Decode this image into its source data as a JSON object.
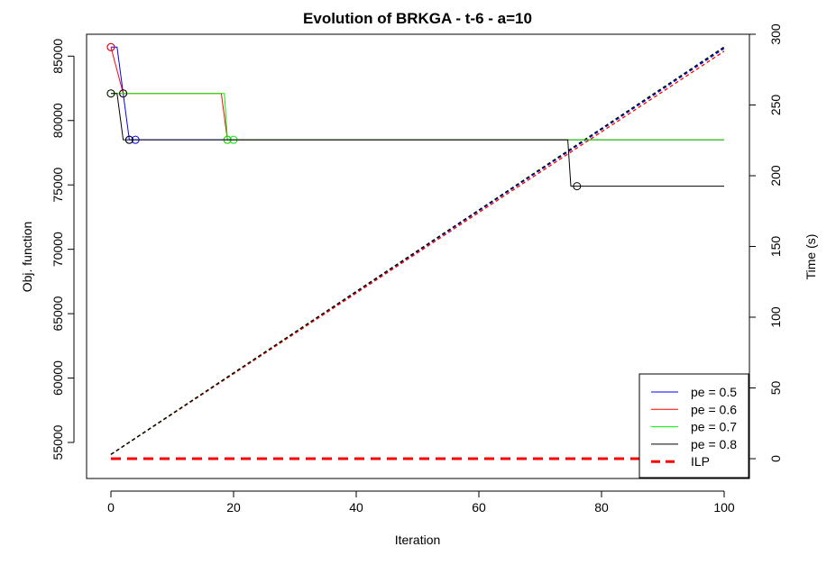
{
  "chart_data": {
    "type": "line",
    "title": "Evolution of BRKGA - t-6 - a=10",
    "xlabel": "Iteration",
    "ylabel": "Obj. function",
    "y2label": "Time (s)",
    "xlim": [
      0,
      100
    ],
    "ylim": [
      52200,
      86700
    ],
    "y2lim": [
      -14,
      300
    ],
    "x_ticks": [
      0,
      20,
      40,
      60,
      80,
      100
    ],
    "y_ticks": [
      55000,
      60000,
      65000,
      70000,
      75000,
      80000,
      85000
    ],
    "y2_ticks": [
      0,
      50,
      100,
      150,
      200,
      250,
      300
    ],
    "grid": false,
    "legend_position": "bottom-right",
    "colors": {
      "pe_0_5": "#0000ff",
      "pe_0_6": "#ff0000",
      "pe_0_7": "#00ee00",
      "pe_0_8": "#000000",
      "ilp": "#ff0000"
    },
    "objective_series": [
      {
        "name": "pe = 0.5",
        "color_key": "pe_0_5",
        "x": [
          0,
          1,
          3,
          4,
          100
        ],
        "y": [
          85700,
          85700,
          78500,
          78500,
          78500
        ],
        "improvements": [
          [
            0,
            85700
          ],
          [
            3,
            78500
          ],
          [
            4,
            78500
          ]
        ]
      },
      {
        "name": "pe = 0.6",
        "color_key": "pe_0_6",
        "x": [
          0,
          2,
          18,
          19,
          100
        ],
        "y": [
          85700,
          82100,
          82100,
          78500,
          78500
        ],
        "improvements": [
          [
            0,
            85700
          ],
          [
            2,
            82100
          ],
          [
            19,
            78500
          ]
        ]
      },
      {
        "name": "pe = 0.7",
        "color_key": "pe_0_7",
        "x": [
          0,
          18.5,
          19,
          20,
          100
        ],
        "y": [
          82100,
          82100,
          78500,
          78500,
          78500
        ],
        "improvements": [
          [
            0,
            82100
          ],
          [
            19,
            78500
          ],
          [
            20,
            78500
          ]
        ]
      },
      {
        "name": "pe = 0.8",
        "color_key": "pe_0_8",
        "x": [
          0,
          1,
          2,
          74.5,
          75,
          100
        ],
        "y": [
          82100,
          82100,
          78500,
          78500,
          74900,
          74900
        ],
        "improvements": [
          [
            0,
            82100
          ],
          [
            2,
            82100
          ],
          [
            3,
            78500
          ],
          [
            76,
            74900
          ]
        ]
      }
    ],
    "time_series": [
      {
        "name": "pe = 0.5",
        "color_key": "pe_0_5",
        "x": [
          0,
          100
        ],
        "y": [
          3,
          290
        ]
      },
      {
        "name": "pe = 0.6",
        "color_key": "pe_0_6",
        "x": [
          0,
          100
        ],
        "y": [
          3,
          288
        ]
      },
      {
        "name": "pe = 0.7",
        "color_key": "pe_0_7",
        "x": [
          0,
          100
        ],
        "y": [
          3,
          291
        ]
      },
      {
        "name": "pe = 0.8",
        "color_key": "pe_0_8",
        "x": [
          0,
          100
        ],
        "y": [
          3,
          291
        ]
      }
    ],
    "ilp": {
      "name": "ILP",
      "color_key": "ilp",
      "x": [
        0,
        100
      ],
      "y2": [
        0,
        0
      ]
    },
    "legend": [
      "pe = 0.5",
      "pe = 0.6",
      "pe = 0.7",
      "pe = 0.8",
      "ILP"
    ]
  }
}
